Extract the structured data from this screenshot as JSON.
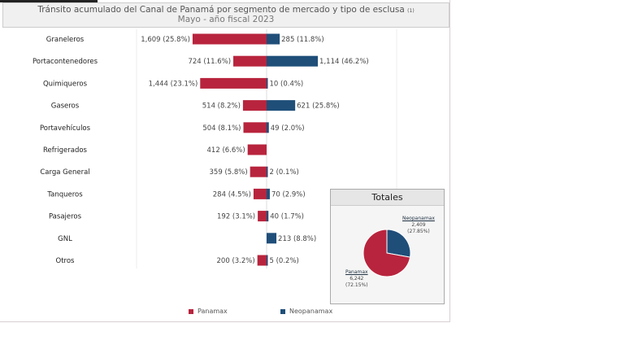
{
  "header": {
    "title": "Tránsito acumulado del Canal de Panamá por segmento de mercado y tipo de esclusa",
    "title_note": "(1)",
    "subtitle": "Mayo - año fiscal 2023"
  },
  "colors": {
    "panamax": "#b8243d",
    "neopanamax": "#1f4e79"
  },
  "chart_data": {
    "type": "bar",
    "orientation": "horizontal-diverging",
    "categories": [
      "Graneleros",
      "Portacontenedores",
      "Quimiqueros",
      "Gaseros",
      "Portavehículos",
      "Refrigerados",
      "Carga General",
      "Tanqueros",
      "Pasajeros",
      "GNL",
      "Otros"
    ],
    "series": [
      {
        "name": "Panamax",
        "values": [
          1609,
          724,
          1444,
          514,
          504,
          412,
          359,
          284,
          192,
          null,
          200
        ],
        "labels": [
          "1,609 (25.8%)",
          "724 (11.6%)",
          "1,444 (23.1%)",
          "514 (8.2%)",
          "504 (8.1%)",
          "412 (6.6%)",
          "359 (5.8%)",
          "284 (4.5%)",
          "192 (3.1%)",
          "",
          "200 (3.2%)"
        ]
      },
      {
        "name": "Neopanamax",
        "values": [
          285,
          1114,
          10,
          621,
          49,
          null,
          2,
          70,
          40,
          213,
          5
        ],
        "labels": [
          "285 (11.8%)",
          "1,114 (46.2%)",
          "10 (0.4%)",
          "621 (25.8%)",
          "49 (2.0%)",
          "",
          "2 (0.1%)",
          "70 (2.9%)",
          "40 (1.7%)",
          "213 (8.8%)",
          "5 (0.2%)"
        ]
      }
    ],
    "legend": "bottom"
  },
  "totals": {
    "title": "Totales",
    "type": "pie",
    "slices": [
      {
        "name": "Neopanamax",
        "value": 2409,
        "value_label": "2,409",
        "pct_label": "(27.85%)"
      },
      {
        "name": "Panamax",
        "value": 6242,
        "value_label": "6,242",
        "pct_label": "(72.15%)"
      }
    ]
  }
}
